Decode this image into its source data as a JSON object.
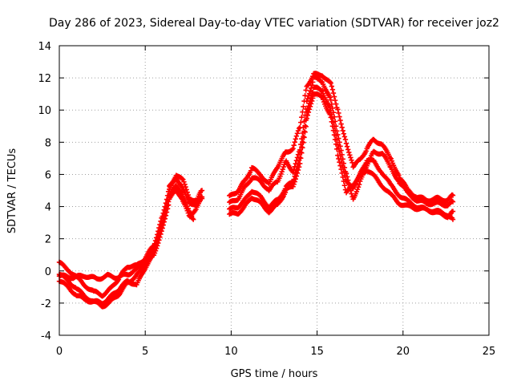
{
  "chart_data": {
    "type": "scatter",
    "title": "Day 286 of 2023, Sidereal Day-to-day VTEC variation (SDTVAR) for receiver joz2",
    "xlabel": "GPS time / hours",
    "ylabel": "SDTVAR / TECUs",
    "xlim": [
      0,
      25
    ],
    "ylim": [
      -4,
      14
    ],
    "xticks": [
      0,
      5,
      10,
      15,
      20,
      25
    ],
    "yticks": [
      -4,
      -2,
      0,
      2,
      4,
      6,
      8,
      10,
      12,
      14
    ],
    "grid": true,
    "marker": "+",
    "marker_color": "#ff0000",
    "series": [
      {
        "name": "track-1",
        "segments": [
          [
            [
              0.0,
              -0.3
            ],
            [
              0.8,
              -0.4
            ],
            [
              1.5,
              -0.3
            ],
            [
              2.2,
              -0.5
            ],
            [
              2.8,
              -0.3
            ],
            [
              3.4,
              -0.4
            ],
            [
              4.0,
              -0.2
            ],
            [
              4.5,
              0.1
            ],
            [
              5.0,
              0.6
            ],
            [
              5.5,
              1.3
            ],
            [
              6.0,
              3.0
            ],
            [
              6.4,
              5.0
            ],
            [
              6.8,
              6.0
            ],
            [
              7.2,
              5.6
            ],
            [
              7.6,
              4.5
            ],
            [
              8.0,
              4.4
            ],
            [
              8.3,
              5.0
            ]
          ],
          [
            [
              9.9,
              4.6
            ],
            [
              10.4,
              5.0
            ],
            [
              10.8,
              5.6
            ],
            [
              11.2,
              6.4
            ],
            [
              11.7,
              6.0
            ],
            [
              12.2,
              5.4
            ],
            [
              12.7,
              6.5
            ],
            [
              13.2,
              7.4
            ],
            [
              13.6,
              7.6
            ],
            [
              14.0,
              9.0
            ],
            [
              14.4,
              11.5
            ],
            [
              14.8,
              12.2
            ],
            [
              15.3,
              12.2
            ],
            [
              15.8,
              11.6
            ],
            [
              16.2,
              10.0
            ],
            [
              16.7,
              8.0
            ],
            [
              17.1,
              6.5
            ],
            [
              17.5,
              6.9
            ],
            [
              17.9,
              7.6
            ],
            [
              18.3,
              8.2
            ],
            [
              18.8,
              7.8
            ],
            [
              19.3,
              7.0
            ],
            [
              19.8,
              5.8
            ],
            [
              20.3,
              5.0
            ],
            [
              20.8,
              4.6
            ],
            [
              21.4,
              4.4
            ],
            [
              22.0,
              4.5
            ],
            [
              22.6,
              4.4
            ],
            [
              22.9,
              4.7
            ]
          ]
        ]
      },
      {
        "name": "track-2",
        "segments": [
          [
            [
              0.0,
              0.5
            ],
            [
              0.5,
              0.1
            ],
            [
              1.0,
              -0.4
            ],
            [
              1.5,
              -0.9
            ],
            [
              2.0,
              -1.3
            ],
            [
              2.5,
              -1.5
            ],
            [
              3.0,
              -1.1
            ],
            [
              3.5,
              -0.4
            ],
            [
              4.0,
              0.3
            ],
            [
              4.5,
              0.3
            ],
            [
              5.0,
              0.8
            ],
            [
              5.5,
              1.6
            ],
            [
              6.0,
              3.4
            ],
            [
              6.4,
              5.2
            ],
            [
              6.8,
              5.8
            ],
            [
              7.2,
              5.0
            ],
            [
              7.6,
              4.2
            ],
            [
              8.0,
              4.2
            ],
            [
              8.3,
              4.6
            ]
          ],
          [
            [
              9.9,
              4.2
            ],
            [
              10.4,
              4.5
            ],
            [
              10.8,
              5.2
            ],
            [
              11.2,
              5.8
            ],
            [
              11.7,
              5.6
            ],
            [
              12.2,
              5.0
            ],
            [
              12.7,
              5.6
            ],
            [
              13.2,
              6.8
            ],
            [
              13.6,
              6.2
            ],
            [
              14.0,
              7.5
            ],
            [
              14.4,
              10.5
            ],
            [
              14.8,
              12.0
            ],
            [
              15.3,
              11.8
            ],
            [
              15.8,
              10.6
            ],
            [
              16.2,
              8.4
            ],
            [
              16.7,
              6.0
            ],
            [
              17.1,
              4.5
            ],
            [
              17.5,
              5.5
            ],
            [
              17.9,
              6.6
            ],
            [
              18.3,
              7.4
            ],
            [
              18.8,
              7.3
            ],
            [
              19.3,
              6.4
            ],
            [
              19.8,
              5.5
            ],
            [
              20.3,
              4.8
            ],
            [
              20.8,
              4.4
            ],
            [
              21.4,
              4.2
            ],
            [
              22.0,
              4.2
            ],
            [
              22.6,
              4.1
            ],
            [
              22.9,
              4.3
            ]
          ]
        ]
      },
      {
        "name": "track-3",
        "segments": [
          [
            [
              0.0,
              -0.2
            ],
            [
              0.5,
              -0.6
            ],
            [
              1.0,
              -1.1
            ],
            [
              1.5,
              -1.6
            ],
            [
              2.0,
              -1.9
            ],
            [
              2.5,
              -2.2
            ],
            [
              3.0,
              -1.9
            ],
            [
              3.5,
              -1.4
            ],
            [
              4.0,
              -0.7
            ],
            [
              4.5,
              -0.3
            ],
            [
              5.0,
              0.4
            ],
            [
              5.5,
              1.2
            ],
            [
              6.0,
              2.8
            ],
            [
              6.4,
              4.6
            ],
            [
              6.8,
              5.4
            ],
            [
              7.2,
              4.6
            ],
            [
              7.6,
              3.6
            ],
            [
              7.8,
              3.2
            ]
          ],
          [
            [
              9.9,
              3.8
            ],
            [
              10.4,
              4.0
            ],
            [
              10.8,
              4.4
            ],
            [
              11.2,
              5.0
            ],
            [
              11.7,
              4.6
            ],
            [
              12.2,
              4.0
            ],
            [
              12.7,
              4.4
            ],
            [
              13.2,
              5.2
            ],
            [
              13.6,
              5.6
            ],
            [
              14.0,
              7.0
            ],
            [
              14.4,
              9.8
            ],
            [
              14.8,
              11.4
            ],
            [
              15.3,
              11.2
            ],
            [
              15.8,
              10.0
            ],
            [
              16.2,
              7.8
            ],
            [
              16.7,
              5.5
            ],
            [
              17.1,
              5.2
            ],
            [
              17.5,
              6.0
            ],
            [
              17.9,
              6.9
            ],
            [
              18.3,
              6.8
            ],
            [
              18.8,
              6.1
            ],
            [
              19.3,
              5.3
            ],
            [
              19.8,
              4.7
            ],
            [
              20.3,
              4.3
            ],
            [
              20.8,
              4.0
            ],
            [
              21.4,
              3.8
            ],
            [
              22.0,
              3.7
            ],
            [
              22.6,
              3.5
            ],
            [
              22.9,
              3.2
            ]
          ]
        ]
      },
      {
        "name": "track-4",
        "segments": [
          [
            [
              0.0,
              -0.6
            ],
            [
              0.5,
              -1.0
            ],
            [
              1.0,
              -1.5
            ],
            [
              1.5,
              -1.8
            ],
            [
              2.0,
              -1.9
            ],
            [
              2.5,
              -2.0
            ],
            [
              3.0,
              -1.6
            ],
            [
              3.5,
              -1.1
            ],
            [
              4.0,
              -0.6
            ],
            [
              4.5,
              -0.9
            ],
            [
              5.0,
              0.2
            ],
            [
              5.5,
              1.0
            ],
            [
              6.0,
              2.6
            ],
            [
              6.4,
              4.4
            ],
            [
              6.8,
              5.1
            ],
            [
              7.2,
              4.3
            ],
            [
              7.6,
              3.3
            ],
            [
              8.0,
              4.0
            ],
            [
              8.3,
              4.5
            ]
          ],
          [
            [
              9.9,
              3.5
            ],
            [
              10.4,
              3.6
            ],
            [
              10.8,
              4.0
            ],
            [
              11.2,
              4.6
            ],
            [
              11.7,
              4.2
            ],
            [
              12.2,
              3.7
            ],
            [
              12.7,
              4.1
            ],
            [
              13.2,
              5.0
            ],
            [
              13.6,
              5.3
            ],
            [
              14.0,
              6.6
            ],
            [
              14.4,
              9.4
            ],
            [
              14.8,
              11.0
            ],
            [
              15.3,
              10.8
            ],
            [
              15.8,
              9.6
            ],
            [
              16.2,
              7.2
            ],
            [
              16.7,
              4.8
            ],
            [
              17.1,
              5.4
            ],
            [
              17.5,
              5.9
            ],
            [
              17.9,
              6.3
            ],
            [
              18.3,
              5.9
            ],
            [
              18.8,
              5.3
            ],
            [
              19.3,
              4.7
            ],
            [
              19.8,
              4.2
            ],
            [
              20.3,
              4.0
            ],
            [
              20.8,
              3.9
            ],
            [
              21.4,
              3.8
            ],
            [
              22.0,
              3.6
            ],
            [
              22.6,
              3.4
            ],
            [
              22.9,
              3.7
            ]
          ]
        ]
      }
    ]
  }
}
